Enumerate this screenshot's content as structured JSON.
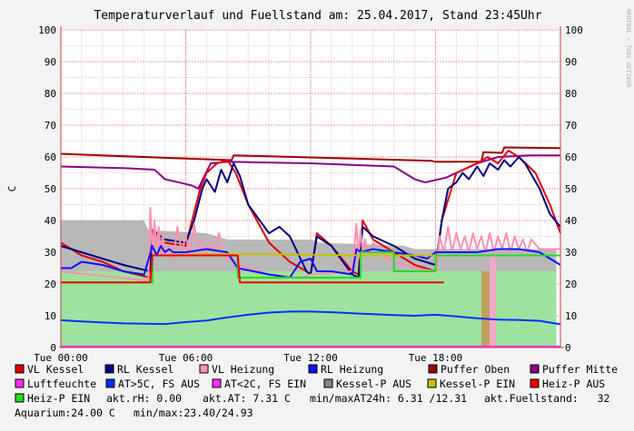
{
  "watermark": "RRDTOOL / TOBI OETIKER",
  "chart_data": {
    "type": "line",
    "title": "Temperaturverlauf und Fuellstand am: 25.04.2017, Stand 23:45Uhr",
    "ylabel": "C",
    "ylim": [
      0,
      100
    ],
    "yticks": [
      "0",
      "10",
      "20",
      "30",
      "40",
      "50",
      "60",
      "70",
      "80",
      "90",
      "100"
    ],
    "xlim": [
      0,
      24
    ],
    "xticks": [
      {
        "h": 0,
        "label": "Tue 00:00"
      },
      {
        "h": 6,
        "label": "Tue 06:00"
      },
      {
        "h": 12,
        "label": "Tue 12:00"
      },
      {
        "h": 18,
        "label": "Tue 18:00"
      }
    ],
    "areas": [
      {
        "name": "Kessel-P AUS",
        "color": "#b8b8b8",
        "x": [
          0,
          4,
          4.2,
          7,
          7.5,
          8,
          12,
          12.5,
          16.5,
          17,
          23.8
        ],
        "y": [
          40,
          40,
          37,
          36,
          35,
          34,
          34,
          33,
          32,
          31,
          31
        ]
      },
      {
        "name": "Heiz-P EIN",
        "color": "#9de39d",
        "x": [
          0,
          23.8
        ],
        "y": [
          24,
          24
        ]
      }
    ],
    "bands": [
      {
        "color": "#c0a060",
        "x0": 20.2,
        "x1": 20.6,
        "y": 24
      },
      {
        "color": "#f3a8c8",
        "x0": 20.6,
        "x1": 20.9,
        "y": 29
      }
    ],
    "series": [
      {
        "name": "Luftfeuchte",
        "color": "#ff2dff",
        "x": [
          0,
          24
        ],
        "y": [
          0.3,
          0.3
        ]
      },
      {
        "name": "Puffer Oben",
        "color": "#a00000",
        "x": [
          0,
          6,
          8.2,
          8.3,
          10,
          14,
          17.8,
          18,
          20.2,
          20.3,
          21.2,
          21.3,
          24
        ],
        "y": [
          61,
          59.5,
          59,
          60.5,
          60.2,
          59.5,
          58.8,
          58.5,
          58.5,
          61.5,
          61.3,
          63,
          62.8
        ]
      },
      {
        "name": "Puffer Mitte",
        "color": "#8a008a",
        "x": [
          0,
          3,
          4.5,
          5,
          6,
          6.3,
          6.6,
          7.2,
          8,
          12,
          16,
          17,
          17.5,
          18.5,
          20,
          21,
          22.5,
          24
        ],
        "y": [
          57,
          56.5,
          56,
          53,
          51.5,
          51,
          50,
          58,
          58.5,
          58,
          57,
          53,
          52,
          53.5,
          58,
          60,
          60.5,
          60.5
        ]
      },
      {
        "name": "VL Kessel",
        "color": "#e00000",
        "x": [
          0,
          1,
          2,
          3,
          4.3,
          4.4,
          5,
          6,
          6.3,
          6.7,
          7,
          7.5,
          8,
          8.4,
          9,
          10,
          11,
          11.8,
          12,
          12.3,
          13,
          14,
          14.3,
          14.5,
          15,
          16,
          17,
          18,
          18.3,
          19,
          20,
          20.5,
          21,
          21.5,
          22,
          22.8,
          23.5,
          24
        ],
        "y": [
          33,
          29,
          27,
          24,
          22,
          36,
          33,
          32,
          40,
          50,
          55,
          58,
          59,
          55,
          45,
          33,
          27,
          24,
          23,
          36,
          32,
          24,
          23,
          40,
          34,
          30,
          26,
          24,
          40,
          55,
          58,
          60,
          58,
          62,
          60,
          55,
          45,
          36
        ]
      },
      {
        "name": "RL Kessel",
        "color": "#000080",
        "x": [
          0,
          1,
          2,
          3,
          4.3,
          4.4,
          5,
          6,
          6.4,
          6.8,
          7,
          7.4,
          7.7,
          8,
          8.3,
          8.6,
          9,
          10,
          10.5,
          11,
          11.8,
          12,
          12.3,
          13,
          14,
          14.3,
          14.5,
          15,
          16,
          17,
          18,
          18.3,
          18.6,
          19,
          19.3,
          19.6,
          20,
          20.3,
          20.6,
          21,
          21.3,
          21.6,
          22,
          22.3,
          23,
          23.5,
          24
        ],
        "y": [
          32,
          30,
          28,
          26,
          24,
          37,
          34,
          33,
          40,
          50,
          53,
          49,
          56,
          52,
          58,
          54,
          45,
          36,
          38,
          35,
          24,
          23,
          35,
          32,
          23,
          22,
          38,
          35,
          32,
          28,
          26,
          40,
          50,
          52,
          55,
          53,
          57,
          54,
          58,
          56,
          59,
          57,
          60,
          58,
          50,
          42,
          38
        ]
      },
      {
        "name": "VL Heizung",
        "color": "#ff8fb0",
        "x": [
          0,
          4.2,
          4.3,
          4.4,
          4.5,
          4.6,
          4.7,
          4.8,
          4.9,
          5,
          5.2,
          5.4,
          5.6,
          5.8,
          6,
          6.2,
          6.4,
          6.6,
          6.8,
          7,
          7.2,
          7.4,
          7.6,
          7.8,
          8,
          8.5,
          10,
          11.5,
          12,
          14,
          14.2,
          14.3,
          14.4,
          14.5,
          14.6,
          14.8,
          15,
          15.5,
          16,
          17,
          18,
          18.2,
          18.4,
          18.6,
          18.8,
          19,
          19.2,
          19.4,
          19.6,
          19.8,
          20,
          20.2,
          20.4,
          20.6,
          20.8,
          21,
          21.2,
          21.4,
          21.6,
          21.8,
          22,
          22.2,
          22.4,
          22.6,
          23,
          24
        ],
        "y": [
          24,
          21,
          44,
          30,
          40,
          31,
          38,
          29,
          36,
          30,
          32,
          28,
          38,
          30,
          35,
          29,
          39,
          30,
          34,
          29,
          33,
          30,
          36,
          30,
          28,
          26,
          23,
          22,
          23,
          24,
          39,
          28,
          37,
          30,
          34,
          29,
          33,
          29,
          27,
          25,
          24,
          35,
          30,
          38,
          30,
          36,
          31,
          35,
          30,
          36,
          31,
          35,
          30,
          36,
          30,
          35,
          31,
          36,
          30,
          35,
          31,
          34,
          30,
          34,
          31,
          31
        ]
      },
      {
        "name": "RL Heizung",
        "color": "#1010ff",
        "x": [
          0,
          0.5,
          1,
          2,
          3,
          4,
          4.4,
          4.6,
          4.8,
          5,
          5.2,
          5.4,
          6,
          7,
          8,
          8.5,
          10,
          11,
          11.5,
          12,
          12.3,
          13,
          14,
          14.2,
          14.4,
          15,
          16,
          17,
          17.6,
          18,
          19,
          20,
          21,
          22,
          23,
          24
        ],
        "y": [
          25,
          25,
          27,
          26,
          24,
          23,
          32,
          29,
          32,
          30,
          31,
          30,
          30,
          31,
          30,
          25,
          23,
          22,
          27,
          28,
          24,
          24,
          23,
          31,
          30,
          31,
          30,
          29,
          28,
          30,
          30,
          30,
          31,
          31,
          30,
          26
        ]
      },
      {
        "name": "AT>5C, FS AUS",
        "color": "#0033ff",
        "x": [
          0,
          1,
          2,
          3,
          4,
          5,
          6,
          7,
          8,
          9,
          10,
          11,
          12,
          13,
          14,
          15,
          16,
          17,
          18,
          19,
          20,
          21,
          22,
          23,
          24
        ],
        "y": [
          8.6,
          8.2,
          7.9,
          7.6,
          7.5,
          7.4,
          8.0,
          8.5,
          9.5,
          10.3,
          11.0,
          11.3,
          11.3,
          11.1,
          10.8,
          10.5,
          10.2,
          10.0,
          10.3,
          9.8,
          9.2,
          8.8,
          8.7,
          8.4,
          7.3
        ]
      },
      {
        "name": "Kessel-P EIN",
        "color": "#c8c000",
        "x": [
          4.4,
          8.5,
          14.4,
          24
        ],
        "y": [
          29,
          29.5,
          29,
          29
        ]
      },
      {
        "name": "Heiz-P EIN",
        "color": "#22dd22",
        "x": [
          0,
          4.4,
          4.4,
          8.5,
          8.5,
          14.4,
          14.4,
          16,
          16,
          18,
          18,
          24
        ],
        "y": [
          20.5,
          20.5,
          29,
          29,
          22,
          22,
          30,
          30,
          24,
          24,
          29,
          29
        ]
      },
      {
        "name": "Heiz-P AUS",
        "color": "#ee0000",
        "x": [
          0,
          4.3,
          4.4,
          4.5,
          8.5,
          8.6,
          14.4,
          14.5,
          18.4
        ],
        "y": [
          20.5,
          20.5,
          29,
          29,
          29,
          20.5,
          20.5,
          20.5,
          20.5
        ]
      }
    ]
  },
  "legend": [
    {
      "label": "VL Kessel",
      "color": "#e00000"
    },
    {
      "label": "RL Kessel",
      "color": "#000080"
    },
    {
      "label": "VL Heizung",
      "color": "#ff8fb0"
    },
    {
      "label": "RL Heizung",
      "color": "#1010ff"
    },
    {
      "label": "Puffer Oben",
      "color": "#a00000"
    },
    {
      "label": "Puffer Mitte",
      "color": "#8a008a"
    },
    {
      "label": "Luftfeuchte",
      "color": "#ff2dff"
    },
    {
      "label": "AT>5C, FS AUS",
      "color": "#0033ff"
    },
    {
      "label": "AT<2C, FS EIN",
      "color": "#ff2dff"
    },
    {
      "label": "Kessel-P AUS",
      "color": "#888888"
    },
    {
      "label": "Kessel-P EIN",
      "color": "#c8c000"
    },
    {
      "label": "Heiz-P AUS",
      "color": "#ee0000"
    },
    {
      "label": "Heiz-P EIN",
      "color": "#22dd22"
    }
  ],
  "status": {
    "rh": "akt.rH: 0.00",
    "at": "akt.AT: 7.31 C",
    "minmax_at": "min/maxAT24h: 6.31 /12.31",
    "fuellstand": "akt.Fuellstand:   32",
    "aquarium": "Aquarium:24.00 C",
    "aquarium_minmax": "min/max:23.40/24.93"
  }
}
